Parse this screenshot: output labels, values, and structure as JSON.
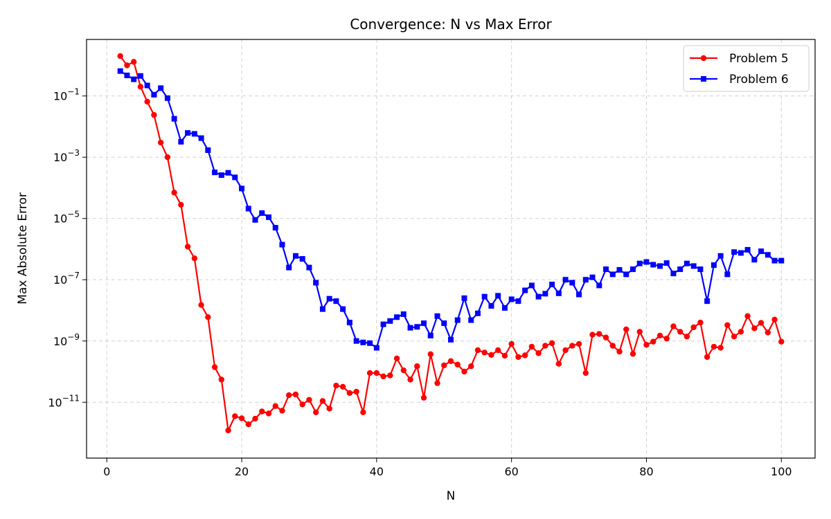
{
  "chart_data": {
    "type": "line",
    "title": "Convergence: N vs Max Error",
    "xlabel": "N",
    "ylabel": "Max Absolute Error",
    "xlim": [
      -3,
      105
    ],
    "ylim": [
      1.5e-13,
      7
    ],
    "yscale": "log",
    "grid": true,
    "legend_position": "top-right",
    "x_ticks": [
      0,
      20,
      40,
      60,
      80,
      100
    ],
    "y_ticks": [
      {
        "value": 0.1,
        "base": "10",
        "exp": "−1"
      },
      {
        "value": 0.001,
        "base": "10",
        "exp": "−3"
      },
      {
        "value": 1e-05,
        "base": "10",
        "exp": "−5"
      },
      {
        "value": 1e-07,
        "base": "10",
        "exp": "−7"
      },
      {
        "value": 1e-09,
        "base": "10",
        "exp": "−9"
      },
      {
        "value": 1e-11,
        "base": "10",
        "exp": "−11"
      }
    ],
    "x": [
      2,
      3,
      4,
      5,
      6,
      7,
      8,
      9,
      10,
      11,
      12,
      13,
      14,
      15,
      16,
      17,
      18,
      19,
      20,
      21,
      22,
      23,
      24,
      25,
      26,
      27,
      28,
      29,
      30,
      31,
      32,
      33,
      34,
      35,
      36,
      37,
      38,
      39,
      40,
      41,
      42,
      43,
      44,
      45,
      46,
      47,
      48,
      49,
      50,
      51,
      52,
      53,
      54,
      55,
      56,
      57,
      58,
      59,
      60,
      61,
      62,
      63,
      64,
      65,
      66,
      67,
      68,
      69,
      70,
      71,
      72,
      73,
      74,
      75,
      76,
      77,
      78,
      79,
      80,
      81,
      82,
      83,
      84,
      85,
      86,
      87,
      88,
      89,
      90,
      91,
      92,
      93,
      94,
      95,
      96,
      97,
      98,
      99,
      100
    ],
    "series": [
      {
        "name": "Problem 5",
        "color": "#ff0000",
        "marker": "circle",
        "values": [
          2,
          1,
          1.3,
          0.2,
          0.065,
          0.024,
          0.003,
          0.001,
          7e-05,
          2.8e-05,
          1.2e-06,
          5e-07,
          1.5e-08,
          6e-09,
          1.4e-10,
          5.5e-11,
          1.2e-12,
          3.5e-12,
          3e-12,
          1.9e-12,
          2.9e-12,
          5e-12,
          4.3e-12,
          7.5e-12,
          5.3e-12,
          1.7e-11,
          1.8e-11,
          8.5e-12,
          1.2e-11,
          4.7e-12,
          1.1e-11,
          6.2e-12,
          3.5e-11,
          3.2e-11,
          2e-11,
          2.2e-11,
          4.7e-12,
          9e-11,
          9e-11,
          7e-11,
          7.5e-11,
          2.7e-10,
          1.1e-10,
          5.5e-11,
          1.5e-10,
          1.4e-11,
          3.7e-10,
          4.2e-11,
          1.6e-10,
          2.2e-10,
          1.7e-10,
          1e-10,
          1.5e-10,
          5e-10,
          4.2e-10,
          3.5e-10,
          5e-10,
          3.3e-10,
          8e-10,
          3e-10,
          3.4e-10,
          6.5e-10,
          4e-10,
          7e-10,
          8.5e-10,
          1.8e-10,
          5e-10,
          7e-10,
          8e-10,
          9e-11,
          1.6e-09,
          1.7e-09,
          1.3e-09,
          7e-10,
          4.5e-10,
          2.4e-09,
          3.8e-10,
          2e-09,
          7.5e-10,
          9.5e-10,
          1.5e-09,
          1.2e-09,
          3e-09,
          2e-09,
          1.4e-09,
          2.8e-09,
          4e-09,
          3e-10,
          6.5e-10,
          6e-10,
          3.3e-09,
          1.4e-09,
          2e-09,
          6.5e-09,
          2.6e-09,
          3.9e-09,
          1.9e-09,
          5e-09,
          9.5e-10
        ]
      },
      {
        "name": "Problem 6",
        "color": "#0000ff",
        "marker": "square",
        "values": [
          0.65,
          0.47,
          0.35,
          0.45,
          0.22,
          0.11,
          0.18,
          0.085,
          0.018,
          0.0032,
          0.0062,
          0.0058,
          0.0042,
          0.0017,
          0.00032,
          0.00026,
          0.00031,
          0.00022,
          9.5e-05,
          2.1e-05,
          9e-06,
          1.5e-05,
          1.1e-05,
          5e-06,
          1.4e-06,
          2.5e-07,
          6e-07,
          4.8e-07,
          2.5e-07,
          8e-08,
          1.1e-08,
          2.4e-08,
          2e-08,
          1.1e-08,
          4e-09,
          1e-09,
          9e-10,
          8.5e-10,
          6e-10,
          3.5e-09,
          4.5e-09,
          6e-09,
          7.5e-09,
          2.7e-09,
          2.9e-09,
          3.8e-09,
          1.5e-09,
          6.5e-09,
          3.8e-09,
          1.1e-09,
          4.8e-09,
          2.5e-08,
          4.8e-09,
          8e-09,
          2.8e-08,
          1.4e-08,
          3e-08,
          1.2e-08,
          2.3e-08,
          2e-08,
          4.5e-08,
          6.5e-08,
          2.8e-08,
          3.5e-08,
          7e-08,
          3.6e-08,
          1e-07,
          8e-08,
          3.3e-08,
          1e-07,
          1.2e-07,
          6.5e-08,
          2.2e-07,
          1.5e-07,
          2.1e-07,
          1.5e-07,
          2.2e-07,
          3.4e-07,
          3.8e-07,
          3.1e-07,
          2.8e-07,
          3.5e-07,
          1.6e-07,
          2.2e-07,
          3.4e-07,
          2.8e-07,
          2.2e-07,
          2e-08,
          3e-07,
          6e-07,
          1.5e-07,
          8e-07,
          7.5e-07,
          9.5e-07,
          4.5e-07,
          8.5e-07,
          6.5e-07,
          4.2e-07,
          4.2e-07
        ]
      }
    ]
  }
}
